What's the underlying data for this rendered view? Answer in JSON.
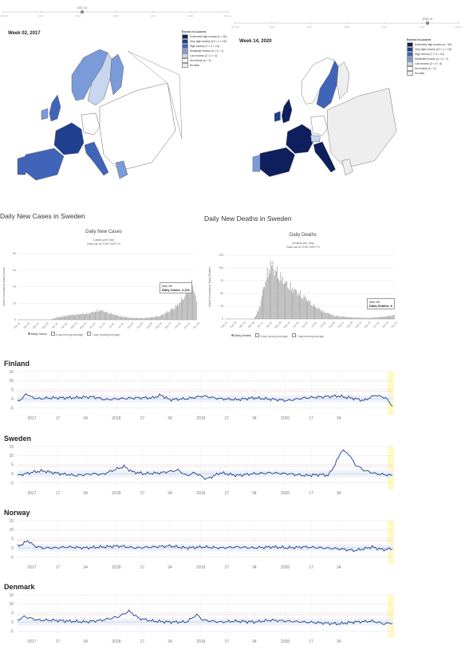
{
  "slider_left": {
    "years": [
      "2015-16",
      "2016",
      "2017",
      "2018",
      "2019",
      "2020",
      "2021-22"
    ],
    "handle_label": "2017-02"
  },
  "slider_right": {
    "years": [
      "2015-16",
      "2016",
      "2017",
      "2018",
      "2019",
      "2020",
      "2021-22"
    ],
    "handle_label": "2020-14"
  },
  "map_left": {
    "title": "Week 02, 2017"
  },
  "map_right": {
    "title": "Week 14, 2020"
  },
  "legend": {
    "heading": "Excess in z-scores",
    "items": [
      {
        "label": "Extremely high excess",
        "range": "(z > 15)",
        "color": "#0d1f5c"
      },
      {
        "label": "Very high excess",
        "range": "(10 < z < 15)",
        "color": "#1f3f8f"
      },
      {
        "label": "High excess",
        "range": "(7 < z < 10)",
        "color": "#3f64b8"
      },
      {
        "label": "Moderate excess",
        "range": "(4 < z < 7)",
        "color": "#7a9ad8"
      },
      {
        "label": "Low excess",
        "range": "(2 < z < 4)",
        "color": "#c8d6ef"
      },
      {
        "label": "No excess",
        "range": "(z < 2)",
        "color": "#ffffff"
      },
      {
        "label": "No data",
        "range": "",
        "color": "#eeeeee"
      }
    ]
  },
  "cases": {
    "section_title": "Daily New Cases in Sweden",
    "title": "Daily New Cases",
    "subtitle1": "Cases per Day",
    "subtitle2": "Data as of 0:00 GMT+0",
    "ylabel": "Novel Coronavirus Daily Cases",
    "tooltip_date": "Nov 08",
    "tooltip_value": "Daily Cases: 2,116",
    "legend": [
      "Daily Cases",
      "3-day moving average",
      "7-day moving average"
    ]
  },
  "deaths": {
    "section_title": "Daily New Deaths in Sweden",
    "title": "Daily Deaths",
    "subtitle1": "Deaths per Day",
    "subtitle2": "Data as of 0:00 GMT+0",
    "ylabel": "Novel Coronavirus Daily Deaths",
    "tooltip_date": "Nov 08",
    "tooltip_value": "Daily Deaths: 8",
    "legend": [
      "Daily Deaths",
      "3-day moving average",
      "7-day moving average"
    ]
  },
  "chart_data": [
    {
      "type": "bar",
      "title": "Daily New Cases",
      "ylabel": "Novel Coronavirus Daily Cases",
      "ylim": [
        0,
        8000
      ],
      "yticks": [
        "0",
        "2k",
        "4k",
        "6k",
        "8k"
      ],
      "xticks": [
        "Feb 15",
        "Mar 01",
        "Mar 15",
        "Mar 29",
        "Apr 12",
        "Apr 26",
        "May 10",
        "May 24",
        "Jun 07",
        "Jun 21",
        "Jul 05",
        "Jul 19",
        "Aug 02",
        "Aug 16",
        "Aug 30",
        "Sep 13",
        "Sep 27",
        "Oct 11",
        "Oct 25",
        "Nov 08"
      ],
      "profile": [
        [
          0,
          0
        ],
        [
          0.18,
          0
        ],
        [
          0.22,
          300
        ],
        [
          0.3,
          600
        ],
        [
          0.4,
          800
        ],
        [
          0.46,
          1200
        ],
        [
          0.5,
          900
        ],
        [
          0.56,
          500
        ],
        [
          0.62,
          250
        ],
        [
          0.7,
          200
        ],
        [
          0.75,
          300
        ],
        [
          0.8,
          500
        ],
        [
          0.88,
          1500
        ],
        [
          0.94,
          3000
        ],
        [
          0.98,
          4600
        ],
        [
          1,
          2116
        ]
      ]
    },
    {
      "type": "bar",
      "title": "Daily Deaths",
      "ylabel": "Novel Coronavirus Daily Deaths",
      "ylim": [
        0,
        125
      ],
      "yticks": [
        "0",
        "25",
        "50",
        "75",
        "100",
        "125"
      ],
      "xticks": [
        "Feb 15",
        "Feb 29",
        "Mar 14",
        "Mar 28",
        "Apr 11",
        "Apr 25",
        "May 09",
        "May 23",
        "Jun 06",
        "Jun 20",
        "Jul 04",
        "Jul 18",
        "Aug 01",
        "Aug 15",
        "Aug 29",
        "Sep 12",
        "Sep 26",
        "Oct 10",
        "Oct 24",
        "Nov 07"
      ],
      "profile": [
        [
          0,
          0
        ],
        [
          0.17,
          0
        ],
        [
          0.2,
          20
        ],
        [
          0.24,
          80
        ],
        [
          0.27,
          110
        ],
        [
          0.31,
          90
        ],
        [
          0.36,
          70
        ],
        [
          0.42,
          55
        ],
        [
          0.48,
          40
        ],
        [
          0.53,
          25
        ],
        [
          0.58,
          15
        ],
        [
          0.65,
          6
        ],
        [
          0.75,
          3
        ],
        [
          0.85,
          2
        ],
        [
          0.95,
          5
        ],
        [
          1,
          8
        ]
      ]
    },
    {
      "type": "line",
      "country": "Finland",
      "ylim": [
        -7,
        15
      ],
      "yticks": [
        "15",
        "10",
        "5",
        "0",
        "-5"
      ],
      "xticks": [
        "2017",
        "17",
        "34",
        "2018",
        "17",
        "34",
        "2019",
        "17",
        "34",
        "2020",
        "17",
        "34"
      ],
      "keys": [
        [
          0,
          -1
        ],
        [
          3,
          0
        ],
        [
          5,
          3
        ],
        [
          8,
          1
        ],
        [
          12,
          0
        ],
        [
          20,
          0.5
        ],
        [
          30,
          0.5
        ],
        [
          45,
          1
        ],
        [
          52,
          -0.5
        ],
        [
          60,
          0
        ],
        [
          70,
          0.5
        ],
        [
          80,
          0.5
        ],
        [
          85,
          2
        ],
        [
          90,
          -0.5
        ],
        [
          100,
          0
        ],
        [
          110,
          1.5
        ],
        [
          120,
          0
        ],
        [
          130,
          -0.5
        ],
        [
          140,
          0.5
        ],
        [
          160,
          -1
        ],
        [
          170,
          0.5
        ],
        [
          180,
          1
        ],
        [
          190,
          1.5
        ],
        [
          200,
          0
        ],
        [
          205,
          -1
        ],
        [
          212,
          2
        ],
        [
          218,
          0.5
        ],
        [
          222,
          -4
        ]
      ]
    },
    {
      "type": "line",
      "country": "Sweden",
      "ylim": [
        -7,
        15
      ],
      "yticks": [
        "15",
        "10",
        "5",
        "0",
        "-5"
      ],
      "xticks": [
        "2017",
        "17",
        "34",
        "2018",
        "17",
        "34",
        "2019",
        "17",
        "34",
        "2020",
        "17",
        "34"
      ],
      "keys": [
        [
          0,
          -1
        ],
        [
          5,
          0
        ],
        [
          10,
          1
        ],
        [
          15,
          1.5
        ],
        [
          25,
          0
        ],
        [
          35,
          -1
        ],
        [
          45,
          0
        ],
        [
          50,
          -0.5
        ],
        [
          57,
          2
        ],
        [
          63,
          4
        ],
        [
          68,
          1
        ],
        [
          75,
          0
        ],
        [
          85,
          0.5
        ],
        [
          95,
          2
        ],
        [
          100,
          -1
        ],
        [
          105,
          0.5
        ],
        [
          112,
          -3
        ],
        [
          120,
          0.5
        ],
        [
          130,
          -1
        ],
        [
          140,
          0
        ],
        [
          150,
          0.5
        ],
        [
          160,
          0
        ],
        [
          170,
          -1
        ],
        [
          180,
          -0.5
        ],
        [
          184,
          -1
        ],
        [
          188,
          5
        ],
        [
          192,
          13
        ],
        [
          196,
          11
        ],
        [
          200,
          5
        ],
        [
          205,
          2
        ],
        [
          212,
          0
        ],
        [
          222,
          -1
        ]
      ]
    },
    {
      "type": "line",
      "country": "Norway",
      "ylim": [
        -7,
        15
      ],
      "yticks": [
        "15",
        "10",
        "5",
        "0",
        "-5"
      ],
      "xticks": [
        "2017",
        "17",
        "34",
        "2018",
        "17",
        "34",
        "2019",
        "17",
        "34",
        "2020",
        "17",
        "34"
      ],
      "keys": [
        [
          0,
          1
        ],
        [
          3,
          2
        ],
        [
          6,
          4
        ],
        [
          10,
          1
        ],
        [
          15,
          0
        ],
        [
          22,
          0
        ],
        [
          30,
          0.5
        ],
        [
          40,
          0
        ],
        [
          50,
          0.5
        ],
        [
          60,
          1
        ],
        [
          70,
          0
        ],
        [
          80,
          0.5
        ],
        [
          90,
          1
        ],
        [
          100,
          0
        ],
        [
          110,
          0.5
        ],
        [
          120,
          0
        ],
        [
          130,
          0.5
        ],
        [
          140,
          0
        ],
        [
          150,
          0.5
        ],
        [
          160,
          0
        ],
        [
          170,
          0.5
        ],
        [
          180,
          0
        ],
        [
          190,
          -0.5
        ],
        [
          200,
          -1.5
        ],
        [
          210,
          0.5
        ],
        [
          216,
          -1
        ],
        [
          222,
          -0.5
        ]
      ]
    },
    {
      "type": "line",
      "country": "Denmark",
      "ylim": [
        -7,
        15
      ],
      "yticks": [
        "15",
        "10",
        "5",
        "0",
        "-5"
      ],
      "xticks": [
        "2017",
        "17",
        "34",
        "2018",
        "17",
        "34",
        "2019",
        "17",
        "34",
        "2020",
        "17",
        "34"
      ],
      "keys": [
        [
          0,
          1
        ],
        [
          4,
          3
        ],
        [
          8,
          2
        ],
        [
          12,
          1
        ],
        [
          20,
          1
        ],
        [
          30,
          0.5
        ],
        [
          40,
          0
        ],
        [
          50,
          1
        ],
        [
          60,
          3
        ],
        [
          66,
          6
        ],
        [
          72,
          2
        ],
        [
          80,
          0.5
        ],
        [
          90,
          0
        ],
        [
          100,
          0
        ],
        [
          106,
          4
        ],
        [
          110,
          1
        ],
        [
          120,
          0
        ],
        [
          130,
          0.5
        ],
        [
          140,
          0
        ],
        [
          150,
          1
        ],
        [
          160,
          0.5
        ],
        [
          170,
          0
        ],
        [
          180,
          -0.5
        ],
        [
          190,
          -1
        ],
        [
          200,
          0
        ],
        [
          210,
          0.5
        ],
        [
          217,
          -1
        ],
        [
          222,
          -0.5
        ]
      ]
    }
  ]
}
